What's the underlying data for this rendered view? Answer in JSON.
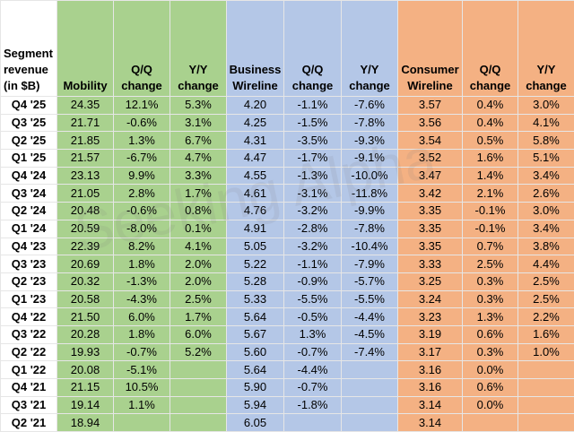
{
  "header": {
    "columns": [
      "Segment revenue (in $B)",
      "Mobility",
      "Q/Q change",
      "Y/Y change",
      "Business Wireline",
      "Q/Q change",
      "Y/Y change",
      "Consumer Wireline",
      "Q/Q change",
      "Y/Y change"
    ]
  },
  "watermark": "Seeking Alpha",
  "table": {
    "rows": [
      [
        "Q4 '25",
        "24.35",
        "12.1%",
        "5.3%",
        "4.20",
        "-1.1%",
        "-7.6%",
        "3.57",
        "0.4%",
        "3.0%"
      ],
      [
        "Q3 '25",
        "21.71",
        "-0.6%",
        "3.1%",
        "4.25",
        "-1.5%",
        "-7.8%",
        "3.56",
        "0.4%",
        "4.1%"
      ],
      [
        "Q2 '25",
        "21.85",
        "1.3%",
        "6.7%",
        "4.31",
        "-3.5%",
        "-9.3%",
        "3.54",
        "0.5%",
        "5.8%"
      ],
      [
        "Q1 '25",
        "21.57",
        "-6.7%",
        "4.7%",
        "4.47",
        "-1.7%",
        "-9.1%",
        "3.52",
        "1.6%",
        "5.1%"
      ],
      [
        "Q4 '24",
        "23.13",
        "9.9%",
        "3.3%",
        "4.55",
        "-1.3%",
        "-10.0%",
        "3.47",
        "1.4%",
        "3.4%"
      ],
      [
        "Q3 '24",
        "21.05",
        "2.8%",
        "1.7%",
        "4.61",
        "-3.1%",
        "-11.8%",
        "3.42",
        "2.1%",
        "2.6%"
      ],
      [
        "Q2 '24",
        "20.48",
        "-0.6%",
        "0.8%",
        "4.76",
        "-3.2%",
        "-9.9%",
        "3.35",
        "-0.1%",
        "3.0%"
      ],
      [
        "Q1 '24",
        "20.59",
        "-8.0%",
        "0.1%",
        "4.91",
        "-2.8%",
        "-7.8%",
        "3.35",
        "-0.1%",
        "3.4%"
      ],
      [
        "Q4 '23",
        "22.39",
        "8.2%",
        "4.1%",
        "5.05",
        "-3.2%",
        "-10.4%",
        "3.35",
        "0.7%",
        "3.8%"
      ],
      [
        "Q3 '23",
        "20.69",
        "1.8%",
        "2.0%",
        "5.22",
        "-1.1%",
        "-7.9%",
        "3.33",
        "2.5%",
        "4.4%"
      ],
      [
        "Q2 '23",
        "20.32",
        "-1.3%",
        "2.0%",
        "5.28",
        "-0.9%",
        "-5.7%",
        "3.25",
        "0.3%",
        "2.5%"
      ],
      [
        "Q1 '23",
        "20.58",
        "-4.3%",
        "2.5%",
        "5.33",
        "-5.5%",
        "-5.5%",
        "3.24",
        "0.3%",
        "2.5%"
      ],
      [
        "Q4 '22",
        "21.50",
        "6.0%",
        "1.7%",
        "5.64",
        "-0.5%",
        "-4.4%",
        "3.23",
        "1.3%",
        "2.2%"
      ],
      [
        "Q3 '22",
        "20.28",
        "1.8%",
        "6.0%",
        "5.67",
        "1.3%",
        "-4.5%",
        "3.19",
        "0.6%",
        "1.6%"
      ],
      [
        "Q2 '22",
        "19.93",
        "-0.7%",
        "5.2%",
        "5.60",
        "-0.7%",
        "-7.4%",
        "3.17",
        "0.3%",
        "1.0%"
      ],
      [
        "Q1 '22",
        "20.08",
        "-5.1%",
        null,
        "5.64",
        "-4.4%",
        null,
        "3.16",
        "0.0%",
        null
      ],
      [
        "Q4 '21",
        "21.15",
        "10.5%",
        null,
        "5.90",
        "-0.7%",
        null,
        "3.16",
        "0.6%",
        null
      ],
      [
        "Q3 '21",
        "19.14",
        "1.1%",
        null,
        "5.94",
        "-1.8%",
        null,
        "3.14",
        "0.0%",
        null
      ],
      [
        "Q2 '21",
        "18.94",
        null,
        null,
        "6.05",
        null,
        null,
        "3.14",
        null,
        null
      ]
    ]
  }
}
